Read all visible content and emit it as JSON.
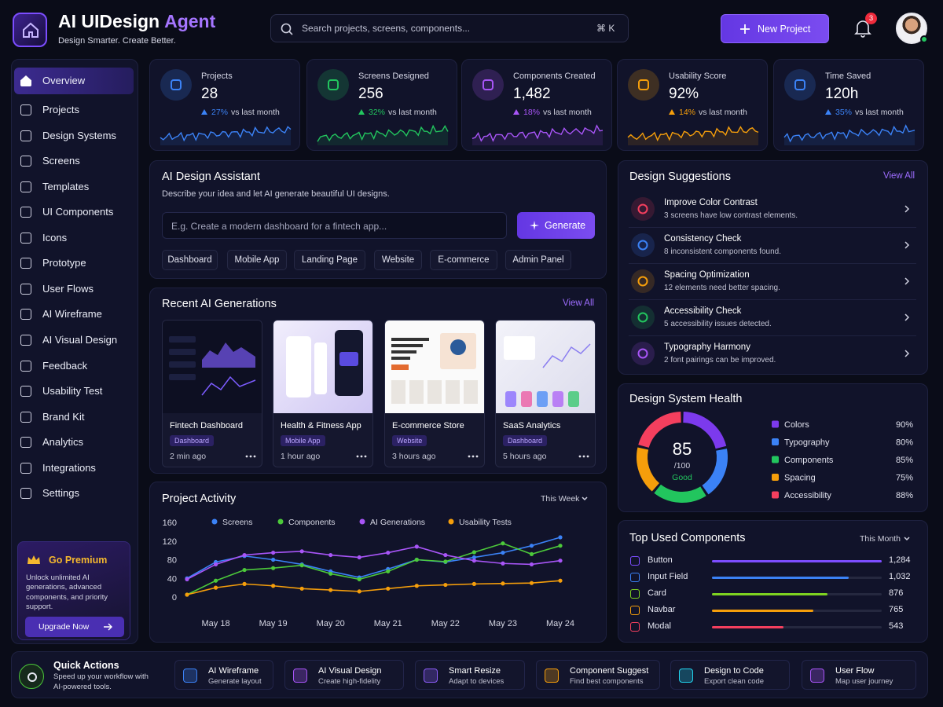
{
  "header": {
    "title": "AI UIDesign",
    "title_accent": "Agent",
    "tagline": "Design Smarter. Create Better.",
    "search_placeholder": "Search projects, screens, components...",
    "shortcut": "⌘ K",
    "new_project": "New Project",
    "notification_count": "3"
  },
  "sidebar": {
    "items": [
      "Overview",
      "Projects",
      "Design Systems",
      "Screens",
      "Templates",
      "UI Components",
      "Icons",
      "Prototype",
      "User Flows",
      "AI Wireframe",
      "AI Visual Design",
      "Feedback",
      "Usability Test",
      "Brand Kit",
      "Analytics",
      "Integrations",
      "Settings"
    ],
    "premium": {
      "title": "Go Premium",
      "text": "Unlock unlimited AI generations, advanced components, and priority support.",
      "button": "Upgrade Now"
    }
  },
  "stats": {
    "compare": "vs last month",
    "items": [
      {
        "label": "Projects",
        "value": "28",
        "change": "27%",
        "color": "#3b82f6"
      },
      {
        "label": "Screens Designed",
        "value": "256",
        "change": "32%",
        "color": "#22c55e"
      },
      {
        "label": "Components Created",
        "value": "1,482",
        "change": "18%",
        "color": "#a855f7"
      },
      {
        "label": "Usability Score",
        "value": "92%",
        "change": "14%",
        "color": "#f59e0b"
      },
      {
        "label": "Time Saved",
        "value": "120h",
        "change": "35%",
        "color": "#3b82f6"
      }
    ]
  },
  "assistant": {
    "title": "AI Design Assistant",
    "description": "Describe your idea and let AI generate beautiful UI designs.",
    "placeholder": "E.g. Create a modern dashboard for a fintech app...",
    "button": "Generate",
    "chips": [
      "Dashboard",
      "Mobile App",
      "Landing Page",
      "Website",
      "E-commerce",
      "Admin Panel"
    ]
  },
  "recent": {
    "title": "Recent AI Generations",
    "view_all": "View All",
    "items": [
      {
        "name": "Fintech Dashboard",
        "tag": "Dashboard",
        "time": "2 min ago"
      },
      {
        "name": "Health & Fitness App",
        "tag": "Mobile App",
        "time": "1 hour ago"
      },
      {
        "name": "E-commerce Store",
        "tag": "Website",
        "time": "3 hours ago"
      },
      {
        "name": "SaaS Analytics",
        "tag": "Dashboard",
        "time": "5 hours ago"
      }
    ]
  },
  "suggestions": {
    "title": "Design Suggestions",
    "view_all": "View All",
    "items": [
      {
        "title": "Improve Color Contrast",
        "description": "3 screens have low contrast elements.",
        "color": "#f43f5e"
      },
      {
        "title": "Consistency Check",
        "description": "8 inconsistent components found.",
        "color": "#3b82f6"
      },
      {
        "title": "Spacing Optimization",
        "description": "12 elements need better spacing.",
        "color": "#f59e0b"
      },
      {
        "title": "Accessibility Check",
        "description": "5 accessibility issues detected.",
        "color": "#22c55e"
      },
      {
        "title": "Typography Harmony",
        "description": "2 font pairings can be improved.",
        "color": "#a855f7"
      }
    ]
  },
  "health": {
    "title": "Design System Health",
    "score": "85",
    "max": "/100",
    "status": "Good",
    "items": [
      {
        "name": "Colors",
        "value": 90,
        "value_label": "90%",
        "color": "#7c3aed"
      },
      {
        "name": "Typography",
        "value": 80,
        "value_label": "80%",
        "color": "#3b82f6"
      },
      {
        "name": "Components",
        "value": 85,
        "value_label": "85%",
        "color": "#22c55e"
      },
      {
        "name": "Spacing",
        "value": 75,
        "value_label": "75%",
        "color": "#f59e0b"
      },
      {
        "name": "Accessibility",
        "value": 88,
        "value_label": "88%",
        "color": "#f43f5e"
      }
    ]
  },
  "components": {
    "title": "Top Used Components",
    "period": "This Month",
    "items": [
      {
        "name": "Button",
        "value": 1284,
        "value_label": "1,284",
        "color": "#7c4dff"
      },
      {
        "name": "Input Field",
        "value": 1032,
        "value_label": "1,032",
        "color": "#3b82f6"
      },
      {
        "name": "Card",
        "value": 876,
        "value_label": "876",
        "color": "#7ed321"
      },
      {
        "name": "Navbar",
        "value": 765,
        "value_label": "765",
        "color": "#f59e0b"
      },
      {
        "name": "Modal",
        "value": 543,
        "value_label": "543",
        "color": "#f43f5e"
      }
    ]
  },
  "quick_actions": {
    "title": "Quick Actions",
    "description": "Speed up your workflow with AI-powered tools.",
    "items": [
      {
        "title": "AI Wireframe",
        "description": "Generate layout",
        "color": "#3b82f6"
      },
      {
        "title": "AI Visual Design",
        "description": "Create high-fidelity",
        "color": "#a855f7"
      },
      {
        "title": "Smart Resize",
        "description": "Adapt to devices",
        "color": "#8b5cf6"
      },
      {
        "title": "Component Suggest",
        "description": "Find best components",
        "color": "#f59e0b"
      },
      {
        "title": "Design to Code",
        "description": "Export clean code",
        "color": "#22d3ee"
      },
      {
        "title": "User Flow",
        "description": "Map user journey",
        "color": "#a855f7"
      }
    ]
  },
  "chart_data": {
    "type": "line",
    "title": "Project Activity",
    "period": "This Week",
    "categories": [
      null,
      "May 18",
      null,
      "May 19",
      null,
      "May 20",
      null,
      "May 21",
      null,
      "May 22",
      null,
      "May 23",
      null,
      "May 24"
    ],
    "series": [
      {
        "name": "Screens",
        "color": "#3b82f6",
        "values": [
          40,
          75,
          88,
          80,
          70,
          55,
          42,
          60,
          80,
          75,
          85,
          95,
          110,
          128
        ]
      },
      {
        "name": "Components",
        "color": "#4cc93a",
        "values": [
          5,
          35,
          58,
          62,
          68,
          50,
          38,
          55,
          80,
          76,
          96,
          115,
          92,
          110
        ]
      },
      {
        "name": "AI Generations",
        "color": "#a855f7",
        "values": [
          38,
          70,
          90,
          95,
          98,
          90,
          85,
          95,
          108,
          90,
          78,
          72,
          70,
          78
        ]
      },
      {
        "name": "Usability Tests",
        "color": "#f59e0b",
        "values": [
          5,
          20,
          28,
          24,
          18,
          15,
          12,
          18,
          24,
          26,
          28,
          29,
          30,
          35
        ]
      }
    ],
    "ylim": [
      0,
      160
    ],
    "yticks": [
      0,
      40,
      80,
      120,
      160
    ]
  }
}
